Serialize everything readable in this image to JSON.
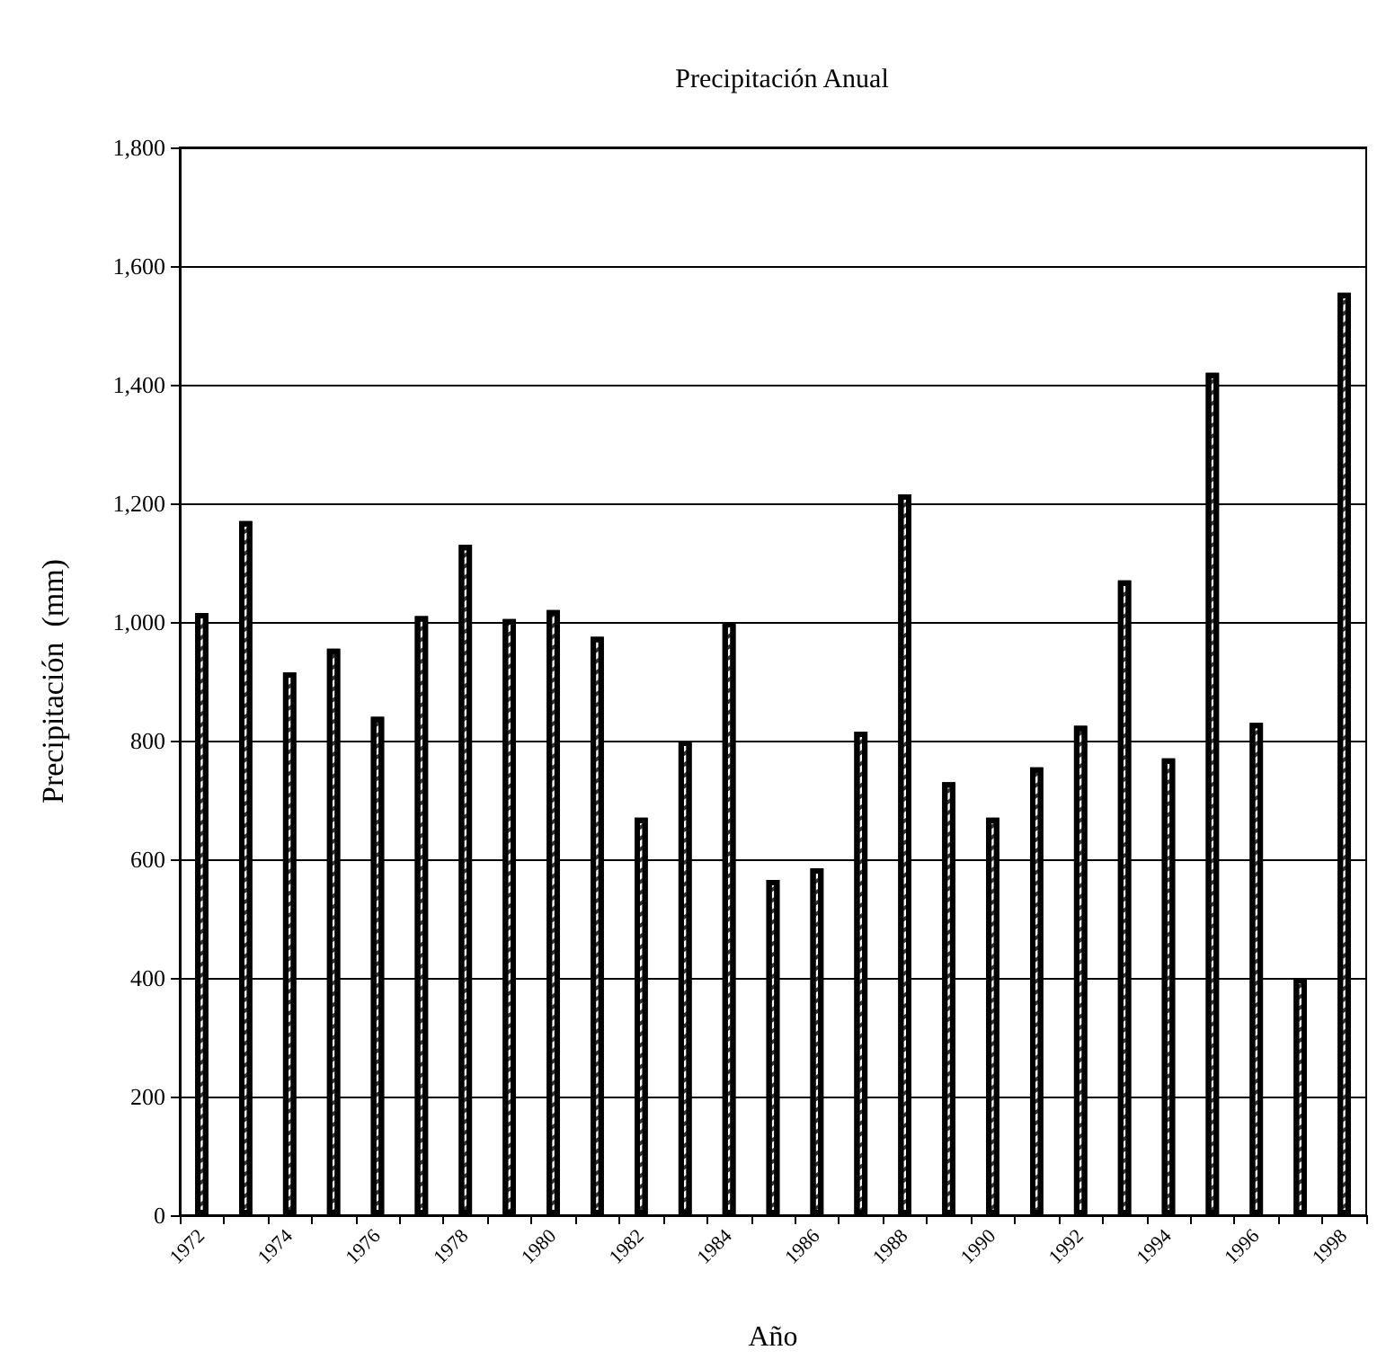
{
  "chart_data": {
    "type": "bar",
    "title": "Precipitación Anual",
    "xlabel": "Año",
    "ylabel": "Precipitación  (mm)",
    "categories": [
      "1972",
      null,
      "1974",
      null,
      "1976",
      null,
      "1978",
      null,
      "1980",
      null,
      "1982",
      null,
      "1984",
      null,
      "1986",
      null,
      "1988",
      null,
      "1990",
      null,
      "1992",
      null,
      "1994",
      null,
      "1996",
      null,
      "1998"
    ],
    "values": [
      1015,
      1170,
      915,
      955,
      840,
      1010,
      1130,
      1005,
      1020,
      975,
      670,
      800,
      1000,
      565,
      585,
      815,
      1215,
      730,
      670,
      755,
      825,
      1070,
      770,
      1420,
      830,
      400,
      1555
    ],
    "color": "#ffffff",
    "ylim": [
      0,
      1800
    ],
    "yticks": [
      {
        "value": 0,
        "label": "0"
      },
      {
        "value": 200,
        "label": "200"
      },
      {
        "value": 400,
        "label": "400"
      },
      {
        "value": 600,
        "label": "600"
      },
      {
        "value": 800,
        "label": "800"
      },
      {
        "value": 1000,
        "label": "1,000"
      },
      {
        "value": 1200,
        "label": "1,200"
      },
      {
        "value": 1400,
        "label": "1,400"
      },
      {
        "value": 1600,
        "label": "1,600"
      },
      {
        "value": 1800,
        "label": "1,800"
      }
    ],
    "grid": "y"
  }
}
